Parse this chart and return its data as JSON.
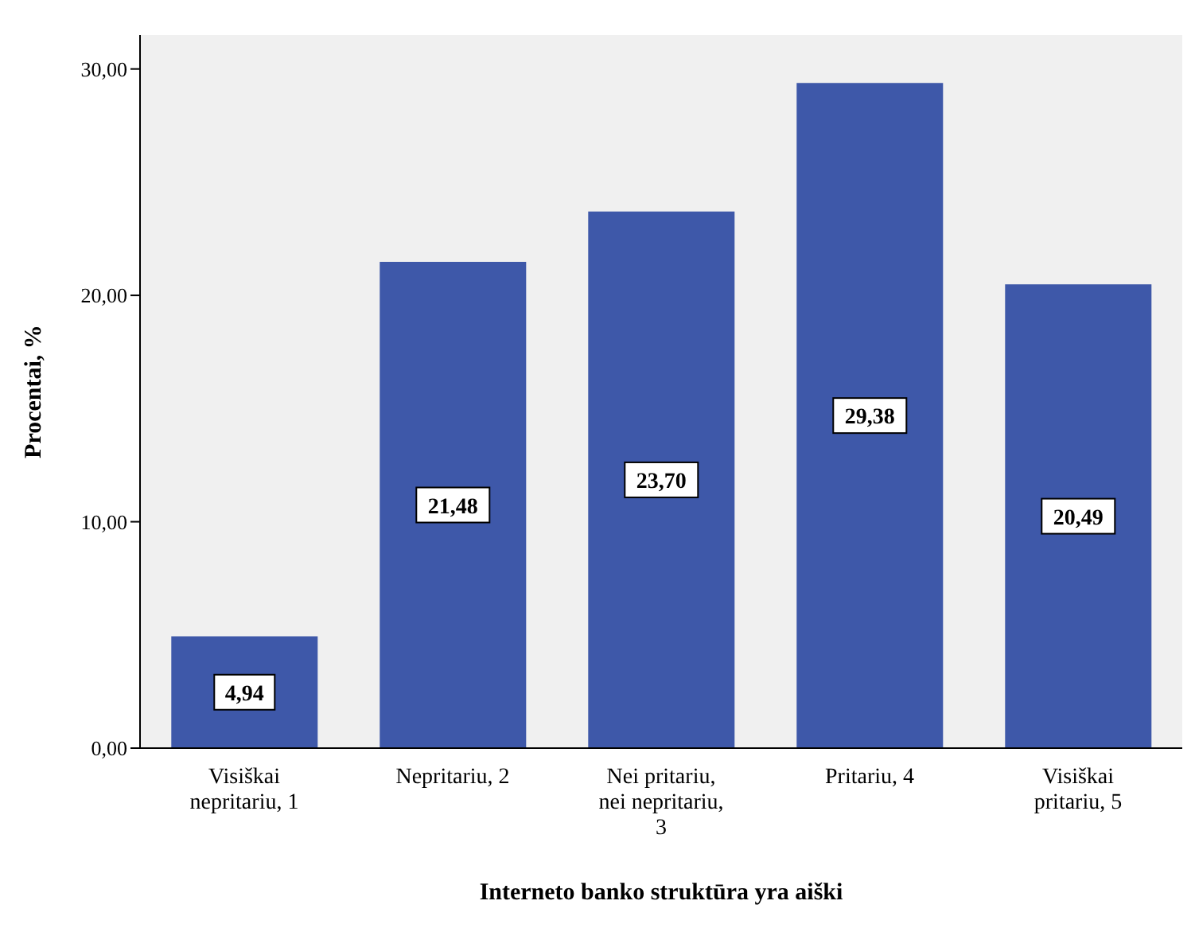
{
  "chart_data": {
    "type": "bar",
    "xlabel": "Interneto banko struktūra yra aiški",
    "ylabel": "Procentai, %",
    "categories": [
      "Visiškai nepritariu, 1",
      "Nepritariu, 2",
      "Nei pritariu, nei nepritariu, 3",
      "Pritariu, 4",
      "Visiškai pritariu, 5"
    ],
    "values": [
      4.94,
      21.48,
      23.7,
      29.38,
      20.49
    ],
    "value_labels": [
      "4,94",
      "21,48",
      "23,70",
      "29,38",
      "20,49"
    ],
    "color": "#3e58a9",
    "ylim": [
      0,
      31.5
    ],
    "yticks": [
      {
        "value": 0,
        "label": "0,00"
      },
      {
        "value": 10,
        "label": "10,00"
      },
      {
        "value": 20,
        "label": "20,00"
      },
      {
        "value": 30,
        "label": "30,00"
      }
    ],
    "grid": false,
    "legend": false
  }
}
